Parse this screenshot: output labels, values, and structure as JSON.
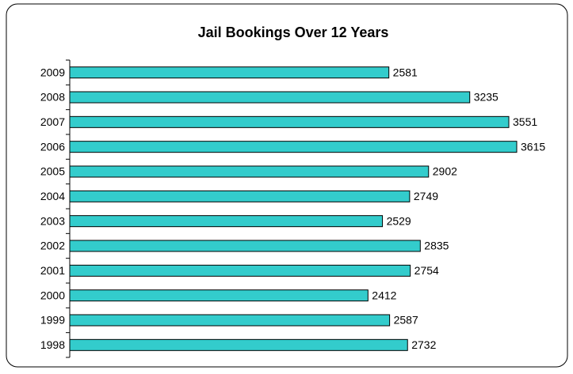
{
  "chart_data": {
    "type": "bar",
    "orientation": "horizontal",
    "title": "Jail Bookings Over 12 Years",
    "categories": [
      "2009",
      "2008",
      "2007",
      "2006",
      "2005",
      "2004",
      "2003",
      "2002",
      "2001",
      "2000",
      "1999",
      "1998"
    ],
    "values": [
      2581,
      3235,
      3551,
      3615,
      2902,
      2749,
      2529,
      2835,
      2754,
      2412,
      2587,
      2732
    ],
    "color": "#33cccc"
  }
}
